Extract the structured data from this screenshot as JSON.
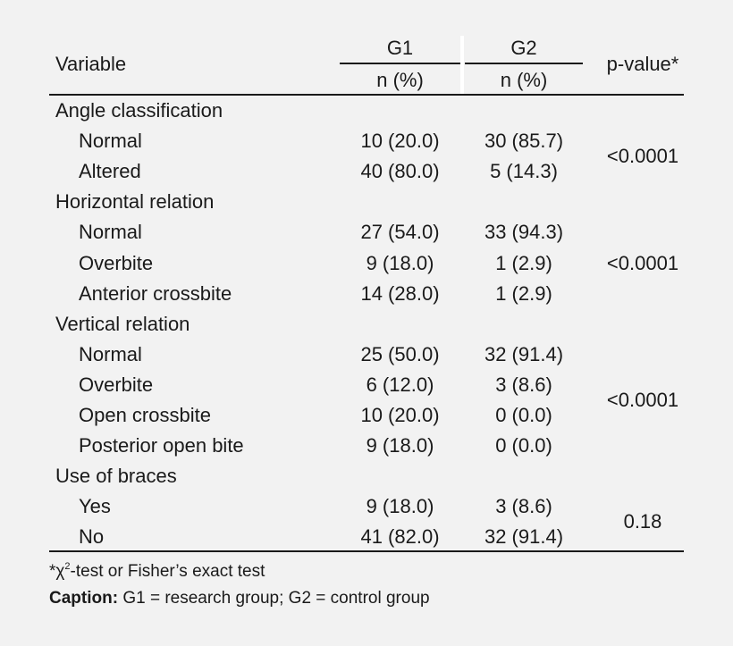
{
  "header": {
    "variable": "Variable",
    "g1": "G1",
    "g2": "G2",
    "g1_sub": "n (%)",
    "g2_sub": "n (%)",
    "pvalue": "p-value*"
  },
  "sections": [
    {
      "title": "Angle classification",
      "pvalue": "<0.0001",
      "rows": [
        {
          "label": "Normal",
          "g1": "10 (20.0)",
          "g2": "30 (85.7)"
        },
        {
          "label": "Altered",
          "g1": "40 (80.0)",
          "g2": "5 (14.3)"
        }
      ]
    },
    {
      "title": "Horizontal relation",
      "pvalue": "<0.0001",
      "rows": [
        {
          "label": "Normal",
          "g1": "27 (54.0)",
          "g2": "33 (94.3)"
        },
        {
          "label": "Overbite",
          "g1": "9 (18.0)",
          "g2": "1 (2.9)"
        },
        {
          "label": "Anterior crossbite",
          "g1": "14 (28.0)",
          "g2": "1 (2.9)"
        }
      ]
    },
    {
      "title": "Vertical relation",
      "pvalue": "<0.0001",
      "rows": [
        {
          "label": "Normal",
          "g1": "25 (50.0)",
          "g2": "32 (91.4)"
        },
        {
          "label": "Overbite",
          "g1": "6 (12.0)",
          "g2": "3 (8.6)"
        },
        {
          "label": "Open crossbite",
          "g1": "10 (20.0)",
          "g2": "0 (0.0)"
        },
        {
          "label": "Posterior open bite",
          "g1": "9 (18.0)",
          "g2": "0 (0.0)"
        }
      ]
    },
    {
      "title": "Use of braces",
      "pvalue": "0.18",
      "rows": [
        {
          "label": "Yes",
          "g1": "9 (18.0)",
          "g2": "3 (8.6)"
        },
        {
          "label": "No",
          "g1": "41 (82.0)",
          "g2": "32 (91.4)"
        }
      ]
    }
  ],
  "footnote": {
    "star": "*",
    "chi": "χ",
    "sup": "2",
    "rest": "-test or Fisher’s exact test"
  },
  "caption": {
    "label": "Caption:",
    "text": " G1 = research group; G2 = control group"
  }
}
